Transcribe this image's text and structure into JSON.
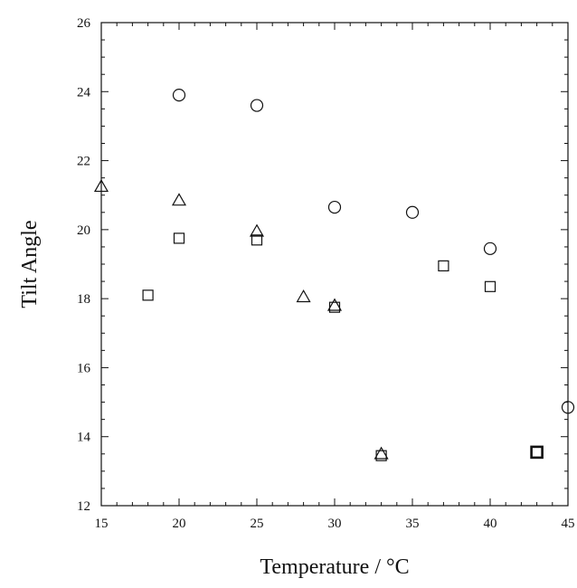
{
  "chart_data": {
    "type": "scatter",
    "title": "",
    "xlabel": "Temperature / °C",
    "ylabel": "Tilt Angle",
    "xlim": [
      15,
      45
    ],
    "ylim": [
      12,
      26
    ],
    "x_ticks": [
      15,
      20,
      25,
      30,
      35,
      40,
      45
    ],
    "y_ticks": [
      12,
      14,
      16,
      18,
      20,
      22,
      24,
      26
    ],
    "grid": false,
    "legend": "none",
    "series": [
      {
        "marker": "circle",
        "points": [
          [
            20,
            23.9
          ],
          [
            25,
            23.6
          ],
          [
            30,
            20.65
          ],
          [
            35,
            20.5
          ],
          [
            40,
            19.45
          ],
          [
            45,
            14.85
          ]
        ]
      },
      {
        "marker": "triangle",
        "points": [
          [
            15,
            21.25
          ],
          [
            20,
            20.85
          ],
          [
            25,
            19.95
          ],
          [
            28,
            18.05
          ],
          [
            30,
            17.8
          ],
          [
            33,
            13.5
          ]
        ]
      },
      {
        "marker": "square",
        "points": [
          [
            18,
            18.1
          ],
          [
            20,
            19.75
          ],
          [
            25,
            19.7
          ],
          [
            30,
            17.75
          ],
          [
            33,
            13.45
          ],
          [
            37,
            18.95
          ],
          [
            40,
            18.35
          ]
        ]
      },
      {
        "marker": "square-bold",
        "points": [
          [
            43,
            13.55
          ]
        ]
      }
    ]
  }
}
